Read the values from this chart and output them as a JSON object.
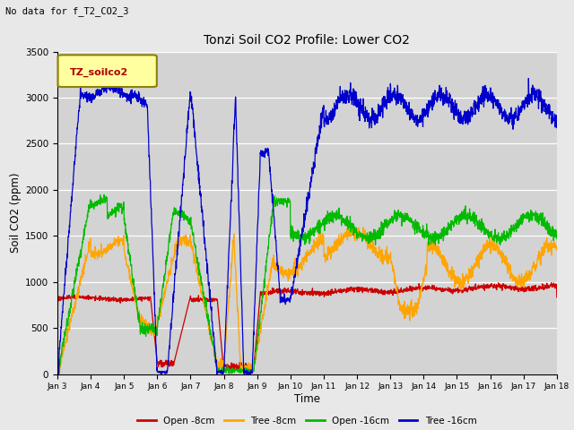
{
  "title": "Tonzi Soil CO2 Profile: Lower CO2",
  "subtitle": "No data for f_T2_CO2_3",
  "xlabel": "Time",
  "ylabel": "Soil CO2 (ppm)",
  "ylim": [
    0,
    3500
  ],
  "legend_label": "TZ_soilco2",
  "background_color": "#e8e8e8",
  "plot_bg_color": "#d3d3d3",
  "series": {
    "open_8cm": {
      "color": "#cc0000",
      "label": "Open -8cm"
    },
    "tree_8cm": {
      "color": "#ffa500",
      "label": "Tree -8cm"
    },
    "open_16cm": {
      "color": "#00bb00",
      "label": "Open -16cm"
    },
    "tree_16cm": {
      "color": "#0000cc",
      "label": "Tree -16cm"
    }
  },
  "xtick_labels": [
    "Jan 3",
    "Jan 4",
    "Jan 5",
    "Jan 6",
    "Jan 7",
    "Jan 8",
    "Jan 9",
    "Jan 10",
    "Jan 11",
    "Jan 12",
    "Jan 13",
    "Jan 14",
    "Jan 15",
    "Jan 16",
    "Jan 17",
    "Jan 18"
  ],
  "ytick_values": [
    0,
    500,
    1000,
    1500,
    2000,
    2500,
    3000,
    3500
  ]
}
